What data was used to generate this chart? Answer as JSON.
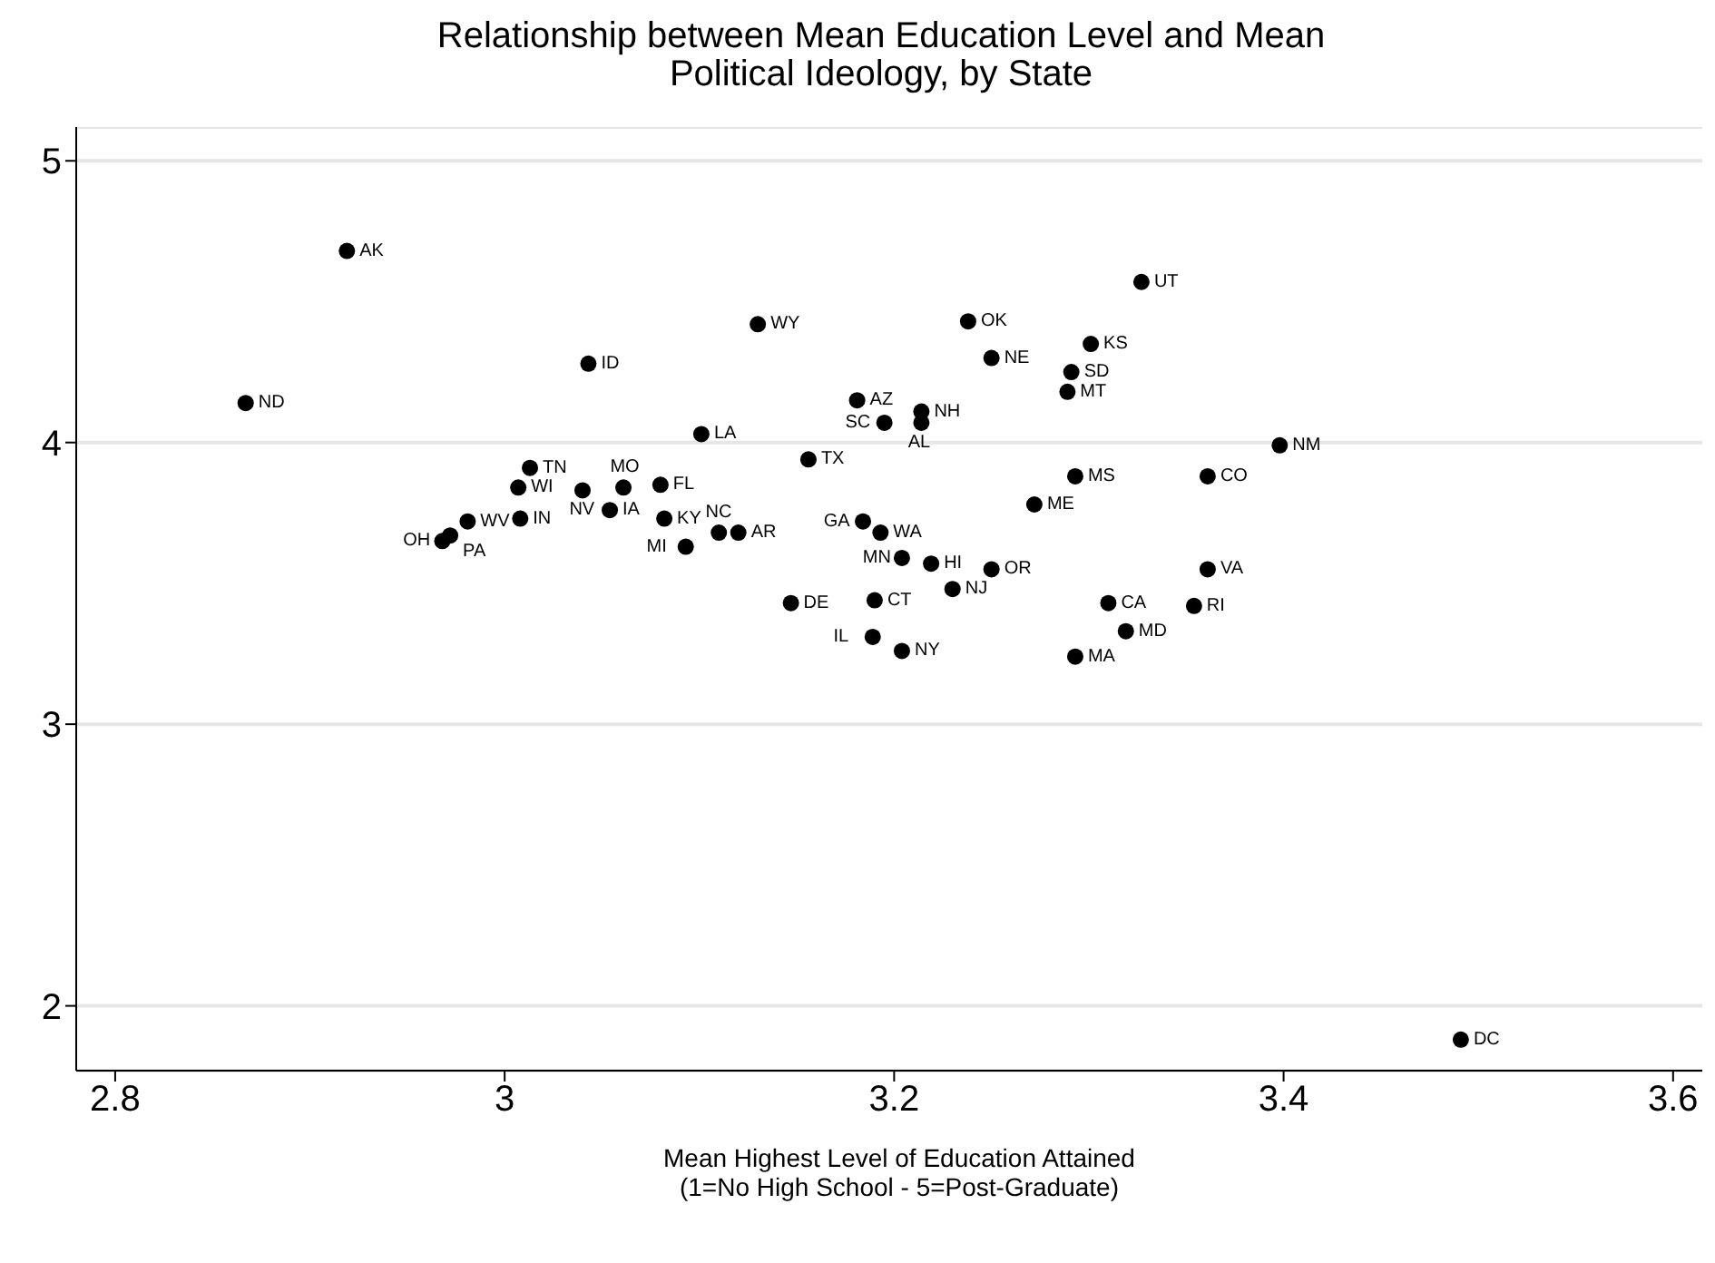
{
  "chart_data": {
    "type": "scatter",
    "title": "Relationship between Mean Education Level and Mean\nPolitical Ideology, by State",
    "xlabel": "Mean Highest Level of Education Attained\n(1=No High School - 5=Post-Graduate)",
    "xlim": [
      2.78,
      3.615
    ],
    "xticks": [
      2.8,
      3,
      3.2,
      3.4,
      3.6
    ],
    "ylim": [
      1.77,
      5.12
    ],
    "yticks": [
      2,
      3,
      4,
      5
    ],
    "grid": "y",
    "legend": false,
    "marker": "circle",
    "series": [
      {
        "color": "#000000",
        "x": [
          2.919,
          2.867,
          3.043,
          3.13,
          3.101,
          3.013,
          3.007,
          3.04,
          3.061,
          3.08,
          3.054,
          3.082,
          3.008,
          2.981,
          2.972,
          2.968,
          3.11,
          3.12,
          3.093,
          3.156,
          3.147,
          3.181,
          3.195,
          3.214,
          3.214,
          3.238,
          3.25,
          3.327,
          3.301,
          3.291,
          3.289,
          3.398,
          3.293,
          3.361,
          3.272,
          3.184,
          3.193,
          3.204,
          3.219,
          3.25,
          3.23,
          3.19,
          3.189,
          3.204,
          3.293,
          3.31,
          3.319,
          3.361,
          3.354,
          3.491
        ],
        "values": [
          4.68,
          4.14,
          4.28,
          4.42,
          4.03,
          3.91,
          3.84,
          3.83,
          3.84,
          3.85,
          3.76,
          3.73,
          3.73,
          3.72,
          3.67,
          3.65,
          3.68,
          3.68,
          3.63,
          3.94,
          3.43,
          4.15,
          4.07,
          4.11,
          4.07,
          4.43,
          4.3,
          4.57,
          4.35,
          4.25,
          4.18,
          3.99,
          3.88,
          3.88,
          3.78,
          3.72,
          3.68,
          3.59,
          3.57,
          3.55,
          3.48,
          3.44,
          3.31,
          3.26,
          3.24,
          3.43,
          3.33,
          3.55,
          3.42,
          1.88
        ]
      }
    ],
    "annotations": [
      {
        "text": "AK",
        "x": 2.919,
        "y": 4.68
      },
      {
        "text": "ND",
        "x": 2.867,
        "y": 4.14
      },
      {
        "text": "ID",
        "x": 3.043,
        "y": 4.28
      },
      {
        "text": "WY",
        "x": 3.13,
        "y": 4.42
      },
      {
        "text": "LA",
        "x": 3.101,
        "y": 4.03
      },
      {
        "text": "TN",
        "x": 3.013,
        "y": 3.91
      },
      {
        "text": "WI",
        "x": 3.007,
        "y": 3.84
      },
      {
        "text": "NV",
        "x": 3.04,
        "y": 3.83
      },
      {
        "text": "MO",
        "x": 3.061,
        "y": 3.84
      },
      {
        "text": "FL",
        "x": 3.08,
        "y": 3.85
      },
      {
        "text": "IA",
        "x": 3.054,
        "y": 3.76
      },
      {
        "text": "KY",
        "x": 3.082,
        "y": 3.73
      },
      {
        "text": "IN",
        "x": 3.008,
        "y": 3.73
      },
      {
        "text": "WV",
        "x": 2.981,
        "y": 3.72
      },
      {
        "text": "PA",
        "x": 2.972,
        "y": 3.67
      },
      {
        "text": "OH",
        "x": 2.968,
        "y": 3.65
      },
      {
        "text": "NC",
        "x": 3.11,
        "y": 3.68
      },
      {
        "text": "AR",
        "x": 3.12,
        "y": 3.68
      },
      {
        "text": "MI",
        "x": 3.093,
        "y": 3.63
      },
      {
        "text": "TX",
        "x": 3.156,
        "y": 3.94
      },
      {
        "text": "DE",
        "x": 3.147,
        "y": 3.43
      },
      {
        "text": "AZ",
        "x": 3.181,
        "y": 4.15
      },
      {
        "text": "SC",
        "x": 3.195,
        "y": 4.07
      },
      {
        "text": "NH",
        "x": 3.214,
        "y": 4.11
      },
      {
        "text": "AL",
        "x": 3.214,
        "y": 4.07
      },
      {
        "text": "OK",
        "x": 3.238,
        "y": 4.43
      },
      {
        "text": "NE",
        "x": 3.25,
        "y": 4.3
      },
      {
        "text": "UT",
        "x": 3.327,
        "y": 4.57
      },
      {
        "text": "KS",
        "x": 3.301,
        "y": 4.35
      },
      {
        "text": "SD",
        "x": 3.291,
        "y": 4.25
      },
      {
        "text": "MT",
        "x": 3.289,
        "y": 4.18
      },
      {
        "text": "NM",
        "x": 3.398,
        "y": 3.99
      },
      {
        "text": "MS",
        "x": 3.293,
        "y": 3.88
      },
      {
        "text": "CO",
        "x": 3.361,
        "y": 3.88
      },
      {
        "text": "ME",
        "x": 3.272,
        "y": 3.78
      },
      {
        "text": "GA",
        "x": 3.184,
        "y": 3.72
      },
      {
        "text": "WA",
        "x": 3.193,
        "y": 3.68
      },
      {
        "text": "MN",
        "x": 3.204,
        "y": 3.59
      },
      {
        "text": "HI",
        "x": 3.219,
        "y": 3.57
      },
      {
        "text": "OR",
        "x": 3.25,
        "y": 3.55
      },
      {
        "text": "NJ",
        "x": 3.23,
        "y": 3.48
      },
      {
        "text": "CT",
        "x": 3.19,
        "y": 3.44
      },
      {
        "text": "IL",
        "x": 3.189,
        "y": 3.31
      },
      {
        "text": "NY",
        "x": 3.204,
        "y": 3.26
      },
      {
        "text": "MA",
        "x": 3.293,
        "y": 3.24
      },
      {
        "text": "CA",
        "x": 3.31,
        "y": 3.43
      },
      {
        "text": "MD",
        "x": 3.319,
        "y": 3.33
      },
      {
        "text": "VA",
        "x": 3.361,
        "y": 3.55
      },
      {
        "text": "RI",
        "x": 3.354,
        "y": 3.42
      },
      {
        "text": "DC",
        "x": 3.491,
        "y": 1.88
      }
    ]
  }
}
